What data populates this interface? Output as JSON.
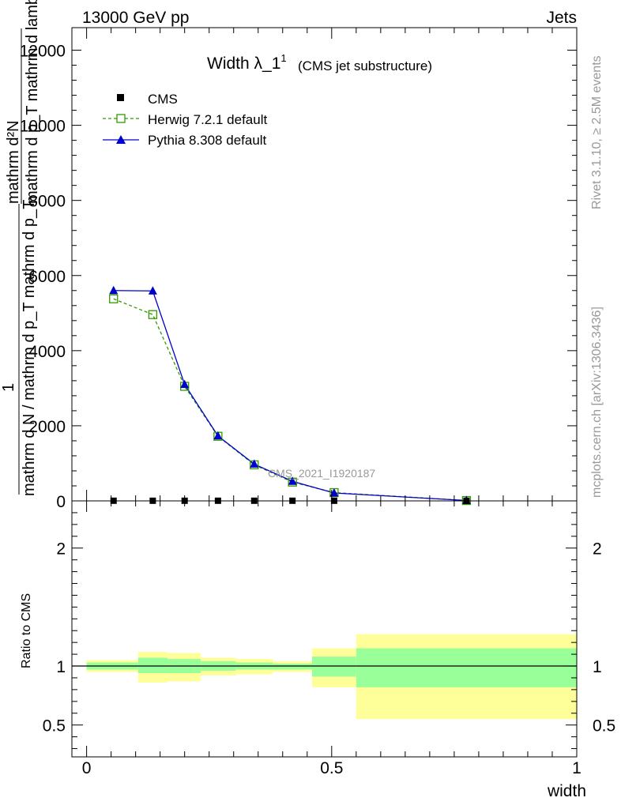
{
  "header": {
    "left_label": "13000 GeV pp",
    "right_label": "Jets"
  },
  "side_labels": {
    "rivet": "Rivet 3.1.10, ≥ 2.5M events",
    "mcplots": "mcplots.cern.ch [arXiv:1306.3436]"
  },
  "colors": {
    "cms": "#000000",
    "herwig": "#339900",
    "pythia": "#0000cc",
    "band_outer": "#ffff99",
    "band_inner": "#99ff99",
    "watermark": "#999999"
  },
  "chart_data": [
    {
      "type": "line",
      "title_main": "Width λ_1",
      "title_sup": "1",
      "title_paren": "(CMS jet substructure)",
      "ylabel_num": "mathrm d²N",
      "ylabel_num_sup": "2",
      "ylabel_den": "mathrm d p_T mathrm d lambda",
      "ylabel_lower": "1",
      "ylabel_lower_den": "mathrm d N / mathrm d p_T mathrm d p_T",
      "watermark": "CMS_2021_I1920187",
      "ylim": [
        0,
        12600
      ],
      "xlim": [
        -0.03,
        1.0
      ],
      "y_ticks": [
        0,
        2000,
        4000,
        6000,
        8000,
        10000,
        12000
      ],
      "y_tick_labels": [
        "0",
        "2000",
        "4000",
        "6000",
        "8000",
        "10000",
        "12000"
      ],
      "legend_position": "top-left",
      "series": [
        {
          "name": "CMS",
          "marker": "square",
          "x": [
            0.055,
            0.135,
            0.2,
            0.268,
            0.342,
            0.42,
            0.505,
            0.775
          ],
          "y": [
            4,
            4,
            4,
            4,
            4,
            4,
            4,
            4
          ]
        },
        {
          "name": "Herwig 7.2.1 default",
          "marker": "open-square",
          "x": [
            0.055,
            0.135,
            0.2,
            0.268,
            0.342,
            0.42,
            0.505,
            0.775
          ],
          "y": [
            5380,
            4960,
            3050,
            1720,
            960,
            500,
            220,
            10
          ]
        },
        {
          "name": "Pythia 8.308 default",
          "marker": "triangle",
          "x": [
            0.055,
            0.135,
            0.2,
            0.268,
            0.342,
            0.42,
            0.505,
            0.775
          ],
          "y": [
            5600,
            5590,
            3100,
            1730,
            980,
            520,
            210,
            10
          ]
        }
      ]
    },
    {
      "type": "area",
      "ylabel": "Ratio to CMS",
      "xlabel": "width",
      "ylim": [
        0.23,
        2.4
      ],
      "xlim": [
        -0.03,
        1.0
      ],
      "x_ticks": [
        0,
        0.5,
        1
      ],
      "x_tick_labels": [
        "0",
        "0.5",
        "1"
      ],
      "y_ticks": [
        0.5,
        1,
        2
      ],
      "y_tick_labels": [
        "0.5",
        "1",
        "2"
      ],
      "reference_line": 1,
      "bins": [
        {
          "x_low": 0.0,
          "x_high": 0.105,
          "outer": [
            0.95,
            1.05
          ],
          "inner": [
            0.97,
            1.03
          ]
        },
        {
          "x_low": 0.105,
          "x_high": 0.165,
          "outer": [
            0.86,
            1.12
          ],
          "inner": [
            0.94,
            1.07
          ]
        },
        {
          "x_low": 0.165,
          "x_high": 0.233,
          "outer": [
            0.87,
            1.11
          ],
          "inner": [
            0.94,
            1.06
          ]
        },
        {
          "x_low": 0.233,
          "x_high": 0.305,
          "outer": [
            0.92,
            1.07
          ],
          "inner": [
            0.96,
            1.04
          ]
        },
        {
          "x_low": 0.305,
          "x_high": 0.38,
          "outer": [
            0.93,
            1.06
          ],
          "inner": [
            0.97,
            1.03
          ]
        },
        {
          "x_low": 0.38,
          "x_high": 0.46,
          "outer": [
            0.95,
            1.04
          ],
          "inner": [
            0.97,
            1.02
          ]
        },
        {
          "x_low": 0.46,
          "x_high": 0.55,
          "outer": [
            0.82,
            1.15
          ],
          "inner": [
            0.91,
            1.08
          ]
        },
        {
          "x_low": 0.55,
          "x_high": 1.0,
          "outer": [
            0.55,
            1.27
          ],
          "inner": [
            0.82,
            1.15
          ]
        }
      ]
    }
  ]
}
